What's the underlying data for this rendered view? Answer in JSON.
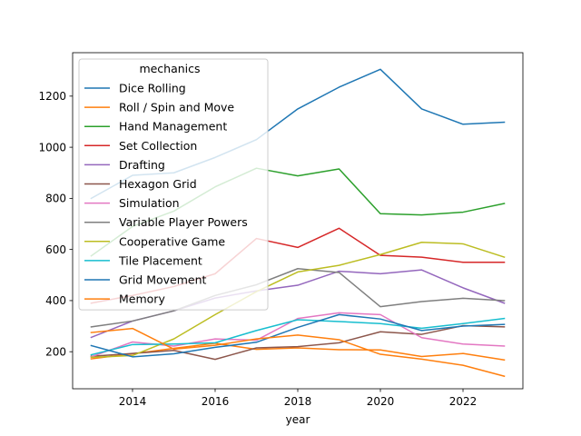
{
  "chart_data": {
    "type": "line",
    "xlabel": "year",
    "ylabel": "",
    "xlim": [
      2012.55,
      2023.45
    ],
    "ylim": [
      55,
      1370
    ],
    "xticks": [
      2014,
      2016,
      2018,
      2020,
      2022
    ],
    "yticks": [
      200,
      400,
      600,
      800,
      1000,
      1200
    ],
    "grid": false,
    "legend": {
      "title": "mechanics",
      "placement": "upper left"
    },
    "x": [
      2013,
      2014,
      2015,
      2016,
      2017,
      2018,
      2019,
      2020,
      2021,
      2022,
      2023
    ],
    "series": [
      {
        "name": "Dice Rolling",
        "color": "#1f77b4",
        "values": [
          800,
          890,
          900,
          960,
          1030,
          1150,
          1235,
          1305,
          1150,
          1090,
          1098
        ]
      },
      {
        "name": "Roll / Spin and Move",
        "color": "#ff7f0e",
        "values": [
          172,
          192,
          213,
          233,
          209,
          215,
          208,
          207,
          181,
          193,
          168
        ]
      },
      {
        "name": "Hand Management",
        "color": "#2ca02c",
        "values": [
          575,
          690,
          750,
          845,
          918,
          888,
          915,
          740,
          735,
          746,
          780
        ]
      },
      {
        "name": "Set Collection",
        "color": "#d62728",
        "values": [
          390,
          420,
          455,
          505,
          643,
          608,
          683,
          577,
          570,
          550,
          550
        ]
      },
      {
        "name": "Drafting",
        "color": "#9467bd",
        "values": [
          256,
          320,
          360,
          410,
          438,
          460,
          515,
          505,
          520,
          450,
          390
        ]
      },
      {
        "name": "Hexagon Grid",
        "color": "#8c564b",
        "values": [
          182,
          193,
          205,
          170,
          215,
          220,
          235,
          278,
          268,
          302,
          297
        ]
      },
      {
        "name": "Simulation",
        "color": "#e377c2",
        "values": [
          180,
          238,
          222,
          250,
          245,
          330,
          352,
          345,
          255,
          230,
          222
        ]
      },
      {
        "name": "Variable Player Powers",
        "color": "#7f7f7f",
        "values": [
          297,
          320,
          360,
          420,
          462,
          525,
          510,
          376,
          396,
          409,
          400
        ]
      },
      {
        "name": "Cooperative Game",
        "color": "#bcbd22",
        "values": [
          178,
          185,
          250,
          345,
          435,
          512,
          538,
          580,
          628,
          622,
          570
        ]
      },
      {
        "name": "Tile Placement",
        "color": "#17becf",
        "values": [
          188,
          228,
          230,
          235,
          283,
          325,
          318,
          310,
          292,
          310,
          330
        ]
      },
      {
        "name": "Grid Movement",
        "color": "#1f77b4",
        "values": [
          224,
          180,
          192,
          217,
          237,
          295,
          345,
          328,
          283,
          300,
          307
        ]
      },
      {
        "name": "Memory",
        "color": "#ff7f0e",
        "values": [
          275,
          291,
          210,
          225,
          250,
          265,
          247,
          190,
          171,
          147,
          104
        ]
      }
    ]
  }
}
